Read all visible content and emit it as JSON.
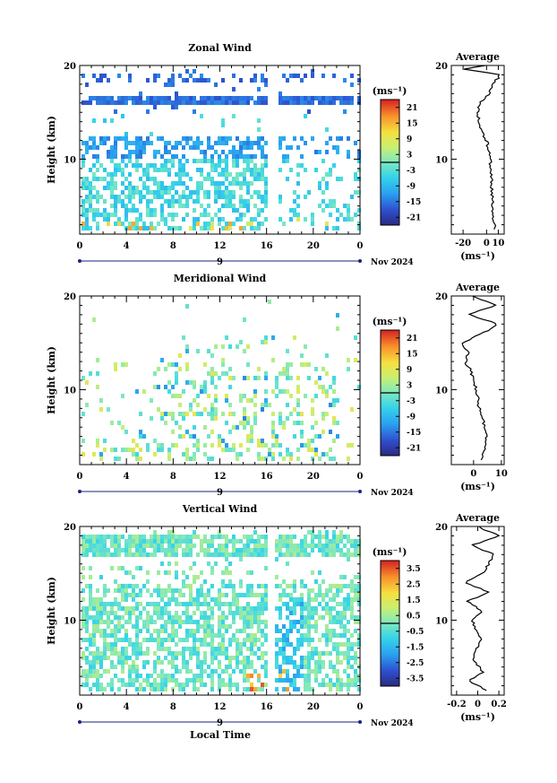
{
  "figure": {
    "xlabel": "Local Time",
    "day_label": "9",
    "date_label": "Nov 2024",
    "units_label": "(ms⁻¹)",
    "avg_title": "Average",
    "ylabel": "Height (km)"
  },
  "chart_data": [
    {
      "type": "heatmap",
      "title": "Zonal Wind",
      "xlabel": "Local Time",
      "ylabel": "Height (km)",
      "x_ticks": [
        "0",
        "4",
        "8",
        "12",
        "16",
        "20",
        "0"
      ],
      "x_range": [
        0,
        24
      ],
      "y_ticks": [
        "10",
        "20"
      ],
      "y_range": [
        2,
        20
      ],
      "colorbar": {
        "units": "(ms⁻¹)",
        "ticks": [
          "21",
          "15",
          "9",
          "3",
          "-3",
          "-9",
          "-15",
          "-21"
        ],
        "range": [
          -24,
          24
        ]
      },
      "data_gaps_hours": [
        [
          16,
          16.8
        ]
      ],
      "profile": {
        "title": "Average",
        "x_ticks": [
          "-20",
          "0",
          "10"
        ],
        "x_range": [
          -30,
          15
        ],
        "xlabel": "(ms⁻¹)",
        "y_ticks": [
          "10",
          "20"
        ],
        "points": [
          [
            7,
            2.5
          ],
          [
            6,
            4
          ],
          [
            5,
            6
          ],
          [
            4,
            8
          ],
          [
            3,
            10
          ],
          [
            0,
            12
          ],
          [
            -5,
            13
          ],
          [
            -8,
            15
          ],
          [
            -6,
            16
          ],
          [
            2,
            17
          ],
          [
            5,
            18
          ],
          [
            12,
            19
          ],
          [
            -20,
            19.6
          ],
          [
            0,
            20
          ]
        ]
      }
    },
    {
      "type": "heatmap",
      "title": "Meridional Wind",
      "xlabel": "Local Time",
      "ylabel": "Height (km)",
      "x_ticks": [
        "0",
        "4",
        "8",
        "12",
        "16",
        "20",
        "0"
      ],
      "x_range": [
        0,
        24
      ],
      "y_ticks": [
        "10",
        "20"
      ],
      "y_range": [
        2,
        20
      ],
      "colorbar": {
        "units": "(ms⁻¹)",
        "ticks": [
          "21",
          "15",
          "9",
          "3",
          "-3",
          "-9",
          "-15",
          "-21"
        ],
        "range": [
          -24,
          24
        ]
      },
      "data_gaps_hours": [],
      "profile": {
        "title": "Average",
        "x_ticks": [
          "0",
          "10"
        ],
        "x_range": [
          -8,
          11
        ],
        "xlabel": "(ms⁻¹)",
        "y_ticks": [
          "10",
          "20"
        ],
        "points": [
          [
            3,
            2.5
          ],
          [
            4,
            4
          ],
          [
            5,
            5
          ],
          [
            4,
            6
          ],
          [
            2,
            8
          ],
          [
            1,
            10
          ],
          [
            -1,
            12
          ],
          [
            -3,
            13
          ],
          [
            -2,
            14
          ],
          [
            -4,
            15
          ],
          [
            3,
            16
          ],
          [
            9,
            17
          ],
          [
            -2,
            18
          ],
          [
            8,
            19
          ],
          [
            0,
            20
          ]
        ]
      }
    },
    {
      "type": "heatmap",
      "title": "Vertical Wind",
      "xlabel": "Local Time",
      "ylabel": "Height (km)",
      "x_ticks": [
        "0",
        "4",
        "8",
        "12",
        "16",
        "20",
        "0"
      ],
      "x_range": [
        0,
        24
      ],
      "y_ticks": [
        "10",
        "20"
      ],
      "y_range": [
        2,
        20
      ],
      "colorbar": {
        "units": "(ms⁻¹)",
        "ticks": [
          "3.5",
          "2.5",
          "1.5",
          "0.5",
          "-0.5",
          "-1.5",
          "-2.5",
          "-3.5"
        ],
        "range": [
          -4,
          4
        ]
      },
      "data_gaps_hours": [
        [
          16,
          16.6
        ]
      ],
      "profile": {
        "title": "Average",
        "x_ticks": [
          "-0.2",
          "0",
          "0.2"
        ],
        "x_range": [
          -0.25,
          0.25
        ],
        "xlabel": "(ms⁻¹)",
        "y_ticks": [
          "10",
          "20"
        ],
        "points": [
          [
            0.08,
            2.5
          ],
          [
            -0.08,
            3.5
          ],
          [
            0.05,
            4.5
          ],
          [
            -0.05,
            6
          ],
          [
            0.03,
            8
          ],
          [
            -0.06,
            10
          ],
          [
            0.04,
            11
          ],
          [
            -0.1,
            12
          ],
          [
            0.1,
            13
          ],
          [
            -0.12,
            14
          ],
          [
            0.05,
            15
          ],
          [
            0.15,
            17
          ],
          [
            -0.05,
            18
          ],
          [
            0.2,
            19
          ],
          [
            0,
            20
          ]
        ]
      }
    }
  ]
}
